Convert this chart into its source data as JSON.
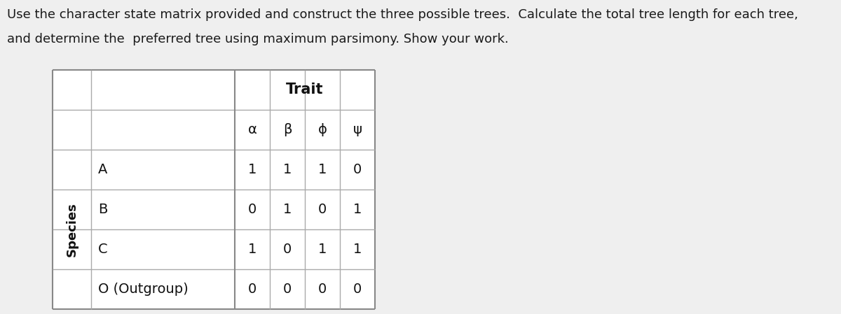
{
  "title_line1": "Use the character state matrix provided and construct the three possible trees.  Calculate the total tree length for each tree,",
  "title_line2": "and determine the  preferred tree using maximum parsimony. Show your work.",
  "title_fontsize": 13.0,
  "title_color": "#1a1a1a",
  "background_color": "#efefef",
  "table_bg": "#ffffff",
  "header_group": "Trait",
  "col_headers": [
    "α",
    "β",
    "ϕ",
    "ψ"
  ],
  "row_headers": [
    "A",
    "B",
    "C",
    "O (Outgroup)"
  ],
  "row_label": "Species",
  "data": [
    [
      1,
      1,
      1,
      0
    ],
    [
      0,
      1,
      0,
      1
    ],
    [
      1,
      0,
      1,
      1
    ],
    [
      0,
      0,
      0,
      0
    ]
  ],
  "cell_fontsize": 14,
  "header_fontsize": 14,
  "group_header_fontsize": 15,
  "species_fontsize": 13,
  "border_color": "#aaaaaa",
  "border_lw": 1.0,
  "thick_lw": 1.5
}
